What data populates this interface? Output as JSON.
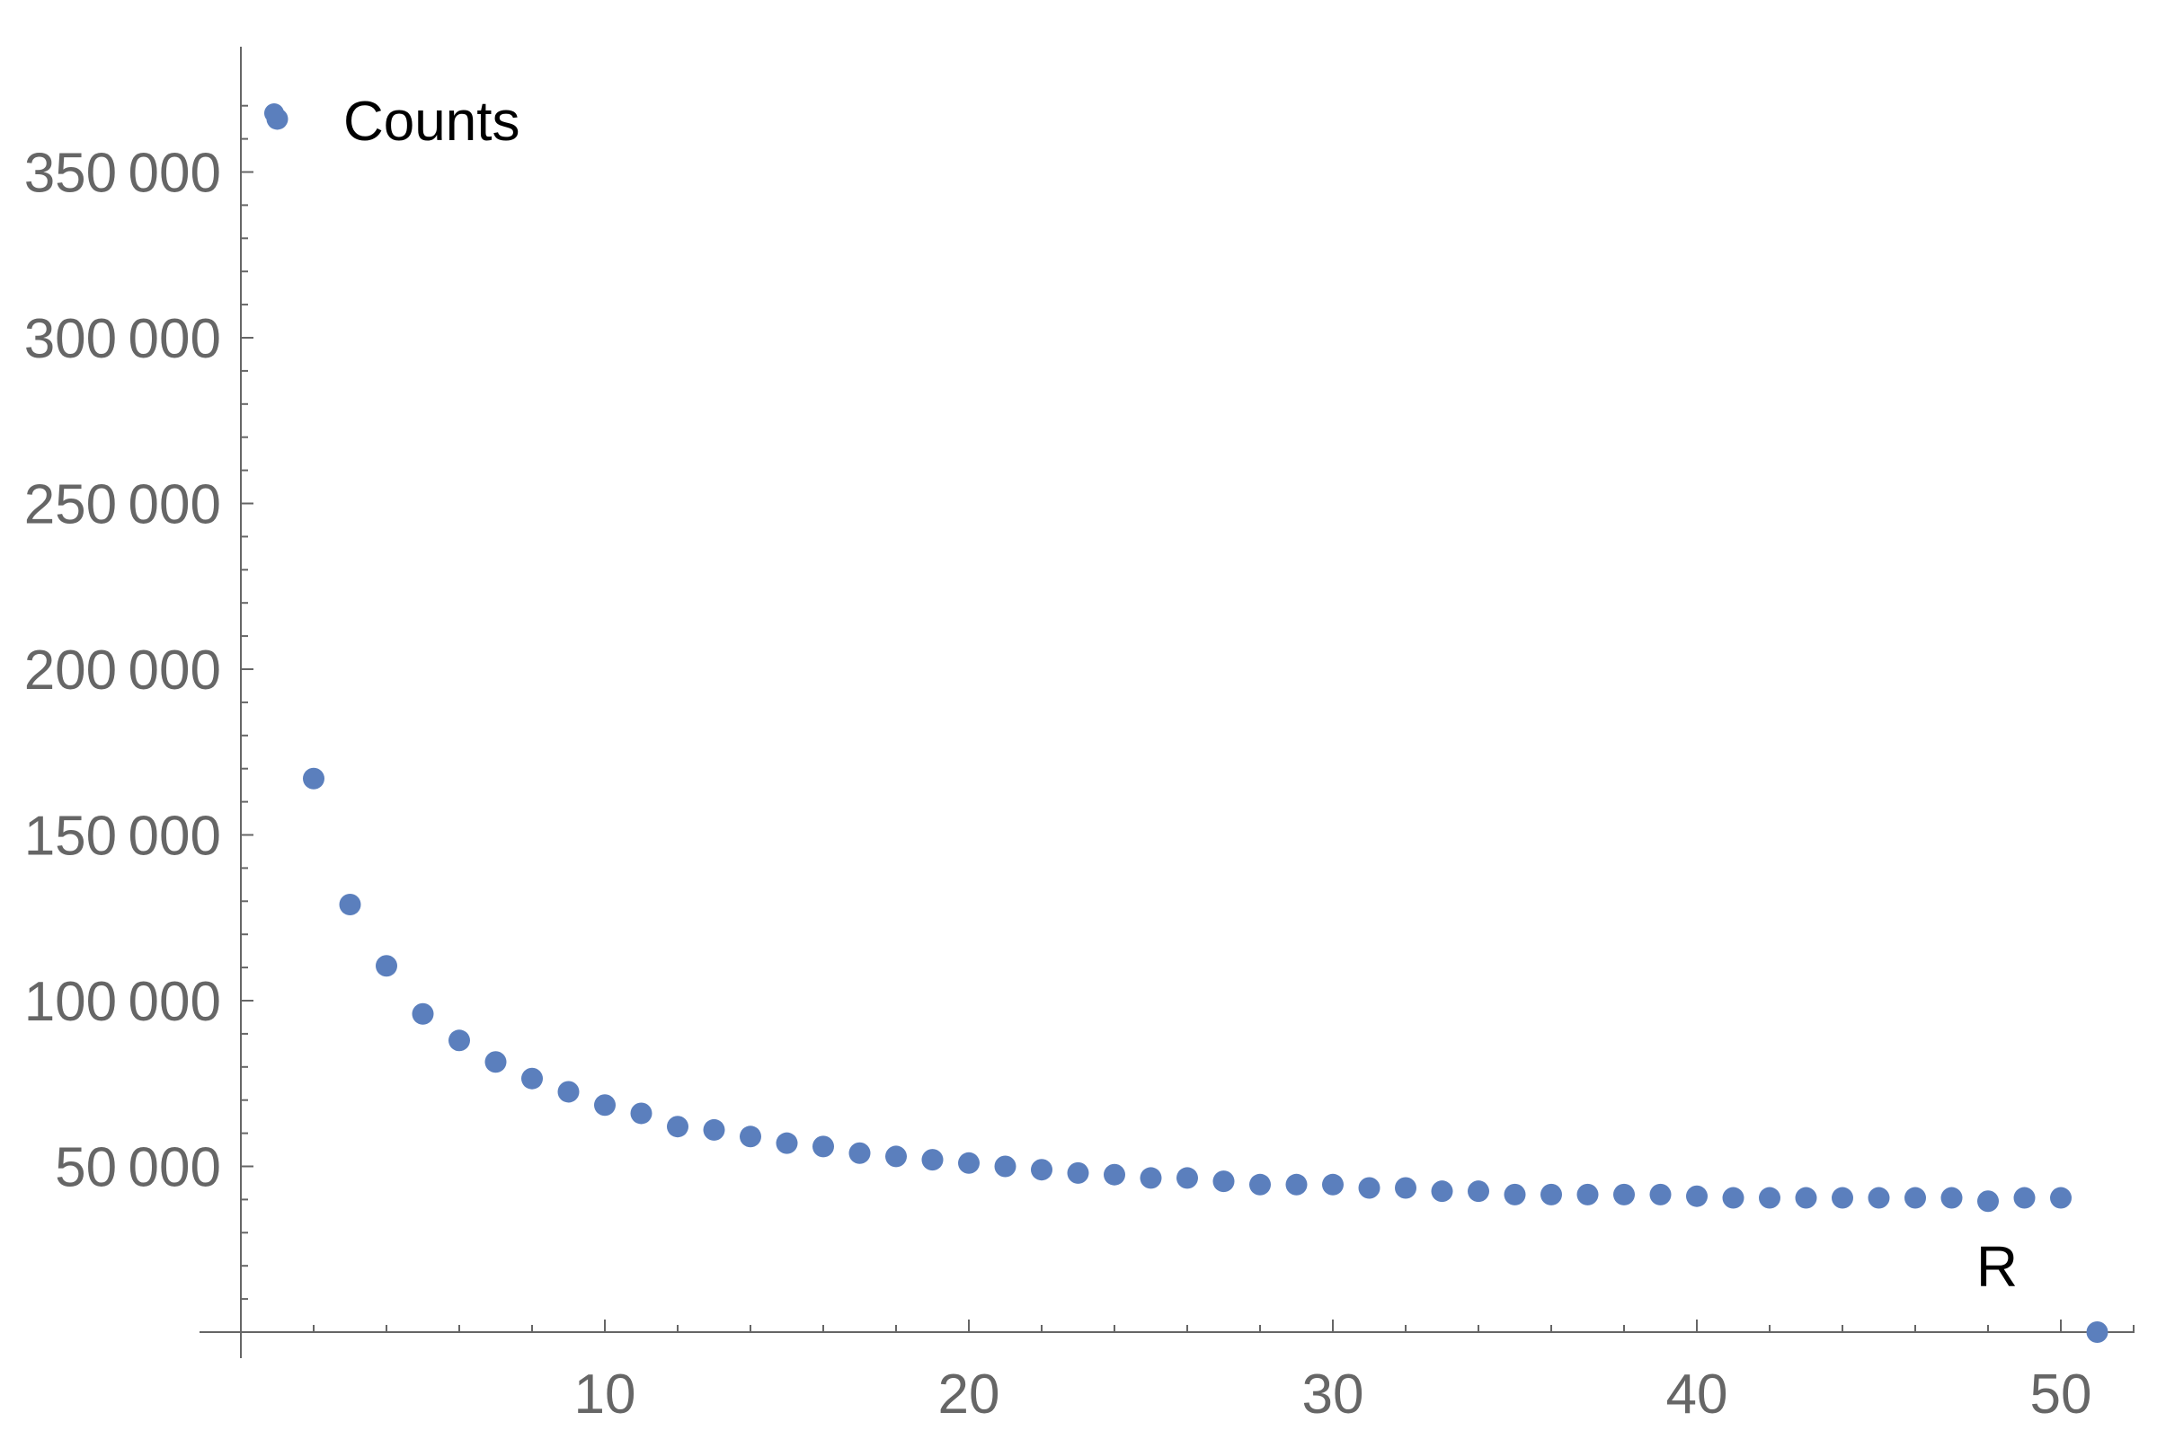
{
  "chart_data": {
    "type": "scatter",
    "title": "",
    "xlabel": "R",
    "ylabel": "",
    "xlim": [
      0,
      52
    ],
    "ylim": [
      0,
      375000
    ],
    "x_ticks": [
      10,
      20,
      30,
      40,
      50
    ],
    "x_tick_labels": [
      "10",
      "20",
      "30",
      "40",
      "50"
    ],
    "x_minor_step": 2,
    "y_ticks": [
      50000,
      100000,
      150000,
      200000,
      250000,
      300000,
      350000
    ],
    "y_tick_labels": [
      "50 000",
      "100 000",
      "150 000",
      "200 000",
      "250 000",
      "300 000",
      "350 000"
    ],
    "y_minor_step": 10000,
    "grid": false,
    "legend": {
      "position": "top-left",
      "entries": [
        "Counts"
      ]
    },
    "colors": {
      "points": "#5b7fbd",
      "axis": "#666666",
      "tick_text": "#666666",
      "label_text": "#000000"
    },
    "series": [
      {
        "name": "Counts",
        "x": [
          1,
          2,
          3,
          4,
          5,
          6,
          7,
          8,
          9,
          10,
          11,
          12,
          13,
          14,
          15,
          16,
          17,
          18,
          19,
          20,
          21,
          22,
          23,
          24,
          25,
          26,
          27,
          28,
          29,
          30,
          31,
          32,
          33,
          34,
          35,
          36,
          37,
          38,
          39,
          40,
          41,
          42,
          43,
          44,
          45,
          46,
          47,
          48,
          49,
          50,
          51
        ],
        "y": [
          366000,
          167000,
          129000,
          110500,
          96000,
          88000,
          81500,
          76500,
          72500,
          68500,
          66000,
          62000,
          61000,
          59000,
          57000,
          56000,
          54000,
          53000,
          52000,
          51000,
          50000,
          49000,
          48000,
          47500,
          46500,
          46500,
          45500,
          44500,
          44500,
          44500,
          43500,
          43500,
          42500,
          42500,
          41500,
          41500,
          41500,
          41500,
          41500,
          41000,
          40500,
          40500,
          40500,
          40500,
          40500,
          40500,
          40500,
          39500,
          40500,
          40500,
          0
        ]
      }
    ]
  }
}
